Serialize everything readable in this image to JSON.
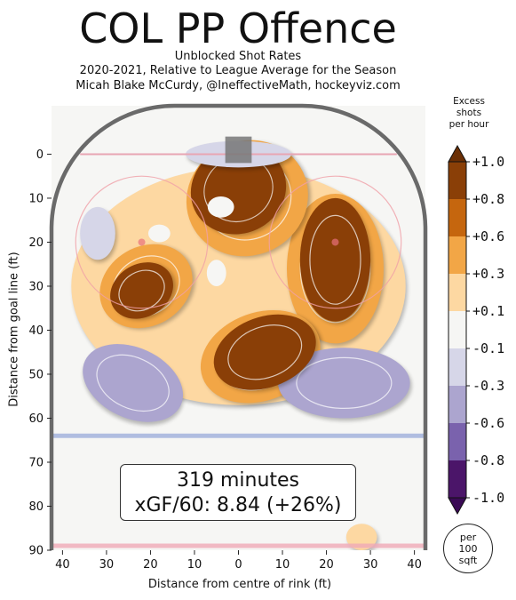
{
  "title": "COL PP Offence",
  "subtitle_lines": [
    "Unblocked Shot Rates",
    "2020-2021, Relative to League Average for the Season",
    "Micah Blake McCurdy, @IneffectiveMath, hockeyviz.com"
  ],
  "info_box": {
    "minutes": "319 minutes",
    "xgf": "xGF/60: 8.84 (+26%)"
  },
  "unit_label": [
    "per",
    "100",
    "sqft"
  ],
  "colorbar": {
    "title": [
      "Excess",
      "shots",
      "per hour"
    ],
    "ticks": [
      "+1.0",
      "+0.8",
      "+0.6",
      "+0.3",
      "+0.1",
      "-0.1",
      "-0.3",
      "-0.6",
      "-0.8",
      "-1.0"
    ],
    "colors": [
      "#8a3f07",
      "#c5660e",
      "#f2a646",
      "#fdd8a2",
      "#f6f6f4",
      "#d6d6e8",
      "#aca5cf",
      "#7a62ad",
      "#4b1569"
    ]
  },
  "chart_data": {
    "type": "heatmap",
    "title": "COL PP Offence",
    "xlabel": "Distance from centre of rink (ft)",
    "ylabel": "Distance from goal line (ft)",
    "xlim": [
      -42.5,
      42.5
    ],
    "ylim": [
      90,
      -11
    ],
    "x_ticks": [
      40,
      30,
      20,
      10,
      0,
      10,
      20,
      30,
      40
    ],
    "x_tick_values": [
      -40,
      -30,
      -20,
      -10,
      0,
      10,
      20,
      30,
      40
    ],
    "y_ticks": [
      0,
      10,
      20,
      30,
      40,
      50,
      60,
      70,
      80,
      90
    ],
    "scale": "Excess shots per hour",
    "regions": [
      {
        "level": 1.0,
        "x": 0,
        "y": 8,
        "rx": 11,
        "ry": 10,
        "rot": -25
      },
      {
        "level": 0.6,
        "x": 2,
        "y": 10,
        "rx": 14,
        "ry": 13,
        "rot": -25
      },
      {
        "level": 1.0,
        "x": -22,
        "y": 31,
        "rx": 7.5,
        "ry": 6,
        "rot": -30
      },
      {
        "level": 0.6,
        "x": -21,
        "y": 30,
        "rx": 11,
        "ry": 9,
        "rot": -30
      },
      {
        "level": 1.0,
        "x": 22,
        "y": 24,
        "rx": 8,
        "ry": 14,
        "rot": 0
      },
      {
        "level": 0.6,
        "x": 22,
        "y": 26,
        "rx": 11,
        "ry": 17,
        "rot": 0
      },
      {
        "level": 1.0,
        "x": 6,
        "y": 45,
        "rx": 12,
        "ry": 8,
        "rot": -20
      },
      {
        "level": 0.6,
        "x": 5,
        "y": 46,
        "rx": 14,
        "ry": 10,
        "rot": -20
      },
      {
        "level": 0.3,
        "x": 0,
        "y": 30,
        "rx": 38,
        "ry": 27,
        "rot": 0
      },
      {
        "level": -0.6,
        "x": -24,
        "y": 52,
        "rx": 12,
        "ry": 8,
        "rot": 25
      },
      {
        "level": -0.6,
        "x": 24,
        "y": 52,
        "rx": 15,
        "ry": 8,
        "rot": 0
      },
      {
        "level": -0.3,
        "x": -32,
        "y": 18,
        "rx": 4,
        "ry": 6,
        "rot": 0
      },
      {
        "level": -0.3,
        "x": 0,
        "y": 0,
        "rx": 12,
        "ry": 3,
        "rot": 0
      },
      {
        "level": 0.3,
        "x": 28,
        "y": 87,
        "rx": 3.5,
        "ry": 3,
        "rot": 0
      }
    ]
  }
}
